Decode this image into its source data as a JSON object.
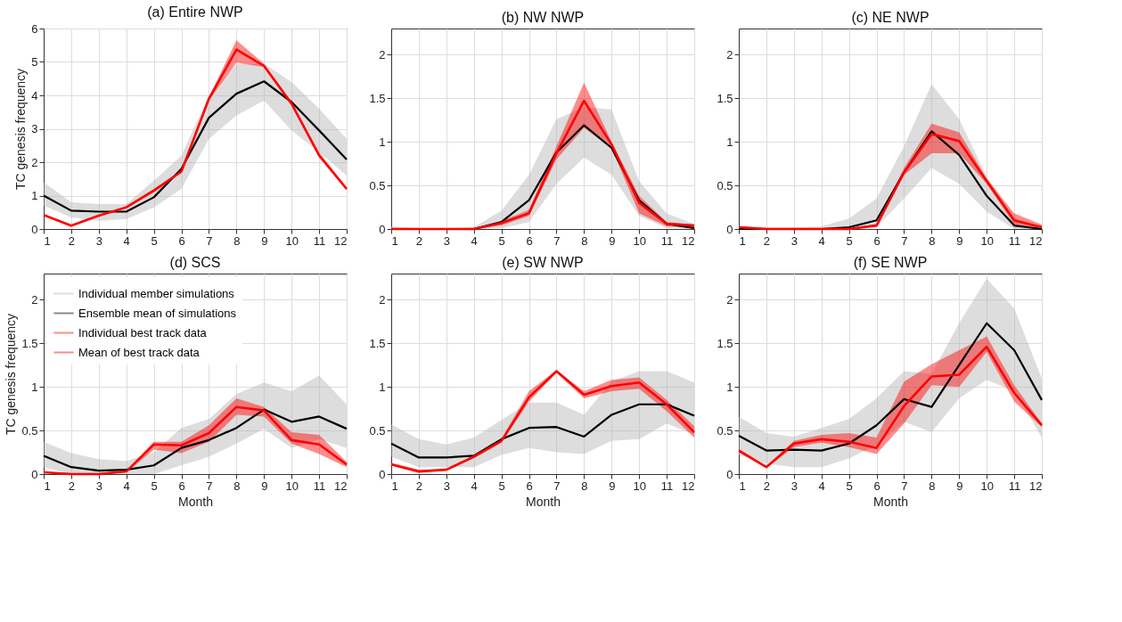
{
  "chart_data": [
    {
      "type": "line",
      "title": "(a) Entire NWP",
      "ylabel": "TC genesis frequency",
      "x": [
        1,
        2,
        3,
        4,
        5,
        6,
        7,
        8,
        9,
        10,
        11,
        12
      ],
      "xlim": [
        1,
        12
      ],
      "xticks": [
        1,
        2,
        3,
        4,
        5,
        6,
        7,
        8,
        9,
        10,
        11,
        12
      ],
      "ylim": [
        0,
        6
      ],
      "yticks": [
        0,
        1,
        2,
        3,
        4,
        5,
        6
      ],
      "grid": true,
      "legend": false,
      "series": [
        {
          "color": "#b4b4b4",
          "values": [
            null,
            null,
            null,
            null,
            null,
            null,
            null,
            null,
            null,
            null,
            null,
            null
          ],
          "lower": [
            0.7,
            0.35,
            0.25,
            0.3,
            0.65,
            1.2,
            2.7,
            3.4,
            3.85,
            2.95,
            2.3,
            1.6
          ],
          "upper": [
            1.4,
            0.8,
            0.75,
            0.75,
            1.45,
            2.2,
            4.0,
            4.95,
            4.95,
            4.4,
            3.6,
            2.7
          ]
        },
        {
          "color": "#000000",
          "values": [
            1.0,
            0.55,
            0.52,
            0.52,
            0.95,
            1.8,
            3.33,
            4.05,
            4.42,
            3.8,
            2.95,
            2.08
          ]
        },
        {
          "color": "#ff0000",
          "values": [
            null,
            null,
            null,
            null,
            null,
            null,
            null,
            null,
            null,
            null,
            null,
            null
          ],
          "lower": [
            0.4,
            0.08,
            0.38,
            0.62,
            1.1,
            1.7,
            3.85,
            4.98,
            4.85,
            3.7,
            2.15,
            1.15
          ],
          "upper": [
            0.44,
            0.12,
            0.42,
            0.68,
            1.2,
            1.75,
            3.95,
            5.65,
            4.95,
            3.8,
            2.3,
            1.25
          ]
        },
        {
          "color": "#ff0000",
          "values": [
            0.42,
            0.1,
            0.4,
            0.65,
            1.15,
            1.72,
            3.9,
            5.37,
            4.88,
            3.75,
            2.2,
            1.2
          ]
        }
      ]
    },
    {
      "type": "line",
      "title": "(b) NW NWP",
      "x": [
        1,
        2,
        3,
        4,
        5,
        6,
        7,
        8,
        9,
        10,
        11,
        12
      ],
      "xlim": [
        1,
        12
      ],
      "xticks": [
        1,
        2,
        3,
        4,
        5,
        6,
        7,
        8,
        9,
        10,
        11,
        12
      ],
      "ylim": [
        0,
        2.3
      ],
      "yticks": [
        0,
        0.5,
        1,
        1.5,
        2
      ],
      "grid": true,
      "legend": false,
      "series": [
        {
          "color": "#b4b4b4",
          "values": [
            null,
            null,
            null,
            null,
            null,
            null,
            null,
            null,
            null,
            null,
            null,
            null
          ],
          "lower": [
            0,
            0,
            0,
            0,
            0.01,
            0.08,
            0.52,
            0.82,
            0.62,
            0.15,
            0.01,
            0
          ],
          "upper": [
            0.03,
            0.01,
            0.01,
            0.02,
            0.21,
            0.62,
            1.26,
            1.4,
            1.37,
            0.55,
            0.18,
            0.06
          ]
        },
        {
          "color": "#000000",
          "values": [
            0,
            0,
            0,
            0,
            0.08,
            0.33,
            0.88,
            1.19,
            0.93,
            0.33,
            0.06,
            0.01
          ]
        },
        {
          "color": "#ff0000",
          "values": [
            null,
            null,
            null,
            null,
            null,
            null,
            null,
            null,
            null,
            null,
            null,
            null
          ],
          "lower": [
            0,
            0,
            0,
            0,
            0.04,
            0.15,
            0.8,
            1.16,
            0.93,
            0.18,
            0.03,
            0.02
          ],
          "upper": [
            0.01,
            0,
            0,
            0.01,
            0.09,
            0.22,
            0.95,
            1.68,
            1.0,
            0.38,
            0.08,
            0.05
          ]
        },
        {
          "color": "#ff0000",
          "values": [
            0,
            0,
            0,
            0,
            0.07,
            0.18,
            0.87,
            1.47,
            0.97,
            0.3,
            0.06,
            0.04
          ]
        }
      ]
    },
    {
      "type": "line",
      "title": "(c) NE NWP",
      "x": [
        1,
        2,
        3,
        4,
        5,
        6,
        7,
        8,
        9,
        10,
        11,
        12
      ],
      "xlim": [
        1,
        12
      ],
      "xticks": [
        1,
        2,
        3,
        4,
        5,
        6,
        7,
        8,
        9,
        10,
        11,
        12
      ],
      "ylim": [
        0,
        2.3
      ],
      "yticks": [
        0,
        0.5,
        1,
        1.5,
        2
      ],
      "grid": true,
      "legend": false,
      "series": [
        {
          "color": "#b4b4b4",
          "values": [
            null,
            null,
            null,
            null,
            null,
            null,
            null,
            null,
            null,
            null,
            null,
            null
          ],
          "lower": [
            0,
            0,
            0,
            0,
            0,
            0.02,
            0.35,
            0.7,
            0.52,
            0.2,
            0,
            0
          ],
          "upper": [
            0.03,
            0.02,
            0.02,
            0.03,
            0.12,
            0.35,
            0.95,
            1.66,
            1.26,
            0.6,
            0.12,
            0.02
          ]
        },
        {
          "color": "#000000",
          "values": [
            0,
            0,
            0,
            0,
            0.02,
            0.1,
            0.65,
            1.12,
            0.85,
            0.38,
            0.04,
            0
          ]
        },
        {
          "color": "#ff0000",
          "values": [
            null,
            null,
            null,
            null,
            null,
            null,
            null,
            null,
            null,
            null,
            null,
            null
          ],
          "lower": [
            0.01,
            0,
            0,
            0,
            0,
            0.03,
            0.62,
            0.87,
            0.87,
            0.52,
            0.05,
            0.01
          ],
          "upper": [
            0.03,
            0.01,
            0,
            0,
            0.01,
            0.06,
            0.7,
            1.21,
            1.11,
            0.58,
            0.18,
            0.05
          ]
        },
        {
          "color": "#ff0000",
          "values": [
            0.02,
            0,
            0,
            0,
            0,
            0.04,
            0.65,
            1.09,
            1.01,
            0.55,
            0.1,
            0.02
          ]
        }
      ]
    },
    {
      "type": "line",
      "title": "(d) SCS",
      "xlabel": "Month",
      "ylabel": "TC genesis frequency",
      "x": [
        1,
        2,
        3,
        4,
        5,
        6,
        7,
        8,
        9,
        10,
        11,
        12
      ],
      "xlim": [
        1,
        12
      ],
      "xticks": [
        1,
        2,
        3,
        4,
        5,
        6,
        7,
        8,
        9,
        10,
        11,
        12
      ],
      "ylim": [
        0,
        2.3
      ],
      "yticks": [
        0,
        0.5,
        1,
        1.5,
        2
      ],
      "grid": true,
      "legend": "top left",
      "series": [
        {
          "name": "Individual member simulations",
          "color": "#b4b4b4",
          "values": [
            null,
            null,
            null,
            null,
            null,
            null,
            null,
            null,
            null,
            null,
            null,
            null
          ],
          "lower": [
            0.08,
            0,
            0,
            0,
            0,
            0.1,
            0.2,
            0.35,
            0.52,
            0.3,
            0.4,
            0.3
          ],
          "upper": [
            0.37,
            0.24,
            0.17,
            0.15,
            0.25,
            0.53,
            0.63,
            0.92,
            1.05,
            0.95,
            1.13,
            0.8
          ]
        },
        {
          "name": "Ensemble mean of simulations",
          "color": "#000000",
          "values": [
            0.21,
            0.08,
            0.04,
            0.05,
            0.1,
            0.3,
            0.39,
            0.53,
            0.74,
            0.6,
            0.66,
            0.52
          ]
        },
        {
          "name": "Individual best track data",
          "color": "#ff0000",
          "values": [
            null,
            null,
            null,
            null,
            null,
            null,
            null,
            null,
            null,
            null,
            null,
            null
          ],
          "lower": [
            0.01,
            0,
            0,
            0.02,
            0.28,
            0.24,
            0.37,
            0.68,
            0.66,
            0.35,
            0.23,
            0.08
          ],
          "upper": [
            0.03,
            0.01,
            0.01,
            0.04,
            0.37,
            0.37,
            0.56,
            0.87,
            0.77,
            0.48,
            0.45,
            0.14
          ]
        },
        {
          "name": "Mean of best track data",
          "color": "#ff0000",
          "values": [
            0.02,
            0,
            0,
            0.03,
            0.34,
            0.33,
            0.47,
            0.77,
            0.73,
            0.39,
            0.34,
            0.11
          ]
        }
      ]
    },
    {
      "type": "line",
      "title": "(e) SW NWP",
      "xlabel": "Month",
      "x": [
        1,
        2,
        3,
        4,
        5,
        6,
        7,
        8,
        9,
        10,
        11,
        12
      ],
      "xlim": [
        1,
        12
      ],
      "xticks": [
        1,
        2,
        3,
        4,
        5,
        6,
        7,
        8,
        9,
        10,
        11,
        12
      ],
      "ylim": [
        0,
        2.3
      ],
      "yticks": [
        0,
        0.5,
        1,
        1.5,
        2
      ],
      "grid": true,
      "legend": false,
      "series": [
        {
          "color": "#b4b4b4",
          "values": [
            null,
            null,
            null,
            null,
            null,
            null,
            null,
            null,
            null,
            null,
            null,
            null
          ],
          "lower": [
            0.2,
            0.08,
            0.08,
            0.08,
            0.22,
            0.3,
            0.25,
            0.23,
            0.38,
            0.4,
            0.58,
            0.45
          ],
          "upper": [
            0.57,
            0.4,
            0.34,
            0.42,
            0.62,
            0.82,
            0.82,
            0.68,
            1.06,
            1.18,
            1.18,
            1.05
          ]
        },
        {
          "color": "#000000",
          "values": [
            0.35,
            0.19,
            0.19,
            0.21,
            0.4,
            0.53,
            0.54,
            0.43,
            0.68,
            0.8,
            0.8,
            0.67
          ]
        },
        {
          "color": "#ff0000",
          "values": [
            null,
            null,
            null,
            null,
            null,
            null,
            null,
            null,
            null,
            null,
            null,
            null
          ],
          "lower": [
            0.1,
            0.01,
            0.04,
            0.18,
            0.36,
            0.83,
            1.16,
            0.87,
            0.95,
            0.98,
            0.72,
            0.42
          ],
          "upper": [
            0.13,
            0.05,
            0.06,
            0.21,
            0.4,
            0.95,
            1.19,
            0.95,
            1.08,
            1.11,
            0.85,
            0.55
          ]
        },
        {
          "color": "#ff0000",
          "values": [
            0.11,
            0.03,
            0.05,
            0.2,
            0.38,
            0.88,
            1.18,
            0.91,
            1.01,
            1.05,
            0.8,
            0.48
          ]
        }
      ]
    },
    {
      "type": "line",
      "title": "(f) SE NWP",
      "xlabel": "Month",
      "x": [
        1,
        2,
        3,
        4,
        5,
        6,
        7,
        8,
        9,
        10,
        11,
        12
      ],
      "xlim": [
        1,
        12
      ],
      "xticks": [
        1,
        2,
        3,
        4,
        5,
        6,
        7,
        8,
        9,
        10,
        11,
        12
      ],
      "ylim": [
        0,
        2.3
      ],
      "yticks": [
        0,
        0.5,
        1,
        1.5,
        2
      ],
      "grid": true,
      "legend": false,
      "series": [
        {
          "color": "#b4b4b4",
          "values": [
            null,
            null,
            null,
            null,
            null,
            null,
            null,
            null,
            null,
            null,
            null,
            null
          ],
          "lower": [
            0.22,
            0.12,
            0.08,
            0.08,
            0.18,
            0.33,
            0.6,
            0.48,
            0.87,
            1.08,
            0.95,
            0.42
          ],
          "upper": [
            0.66,
            0.47,
            0.43,
            0.53,
            0.63,
            0.87,
            1.18,
            1.15,
            1.73,
            2.24,
            1.9,
            1.1
          ]
        },
        {
          "color": "#000000",
          "values": [
            0.44,
            0.27,
            0.28,
            0.27,
            0.35,
            0.56,
            0.86,
            0.77,
            1.25,
            1.73,
            1.42,
            0.85
          ]
        },
        {
          "color": "#ff0000",
          "values": [
            null,
            null,
            null,
            null,
            null,
            null,
            null,
            null,
            null,
            null,
            null,
            null
          ],
          "lower": [
            0.25,
            0.07,
            0.31,
            0.36,
            0.31,
            0.23,
            0.58,
            1.02,
            1.0,
            1.4,
            0.83,
            0.54
          ],
          "upper": [
            0.29,
            0.09,
            0.38,
            0.45,
            0.47,
            0.42,
            1.06,
            1.26,
            1.42,
            1.58,
            1.02,
            0.58
          ]
        },
        {
          "color": "#ff0000",
          "values": [
            0.27,
            0.08,
            0.35,
            0.4,
            0.37,
            0.3,
            0.78,
            1.12,
            1.14,
            1.46,
            0.93,
            0.56
          ]
        }
      ]
    }
  ]
}
